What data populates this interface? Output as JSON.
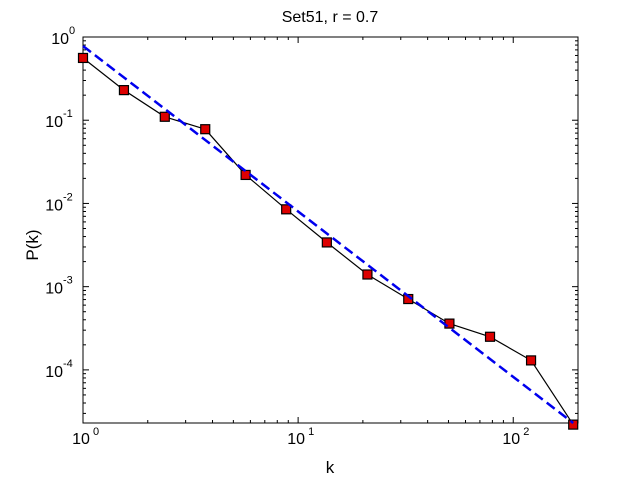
{
  "chart_data": {
    "type": "line",
    "title": "Set51, r = 0.7",
    "xlabel": "k",
    "ylabel": "P(k)",
    "xscale": "log",
    "yscale": "log",
    "xlim": [
      1,
      200
    ],
    "ylim": [
      2.3e-05,
      1
    ],
    "grid": false,
    "legend": "none",
    "x_ticks": [
      {
        "value": 1,
        "base": "10",
        "exp": "0"
      },
      {
        "value": 10,
        "base": "10",
        "exp": "1"
      },
      {
        "value": 100,
        "base": "10",
        "exp": "2"
      }
    ],
    "y_ticks": [
      {
        "value": 1,
        "base": "10",
        "exp": "0"
      },
      {
        "value": 0.1,
        "base": "10",
        "exp": "-1"
      },
      {
        "value": 0.01,
        "base": "10",
        "exp": "-2"
      },
      {
        "value": 0.001,
        "base": "10",
        "exp": "-3"
      },
      {
        "value": 0.0001,
        "base": "10",
        "exp": "-4"
      }
    ],
    "series": [
      {
        "style": "data",
        "color": "#000000",
        "marker_color": "#dd0000",
        "x": [
          1.0,
          1.55,
          2.4,
          3.7,
          5.7,
          8.8,
          13.6,
          21.0,
          32.5,
          50.5,
          78,
          121,
          190
        ],
        "y": [
          0.56,
          0.23,
          0.11,
          0.078,
          0.022,
          0.0085,
          0.0034,
          0.0014,
          0.00071,
          0.00036,
          0.00025,
          0.00013,
          2.2e-05
        ]
      },
      {
        "style": "fit",
        "color": "#0000ee",
        "dashed": true,
        "x": [
          1.0,
          190
        ],
        "y": [
          0.78,
          2.3e-05
        ]
      }
    ]
  }
}
